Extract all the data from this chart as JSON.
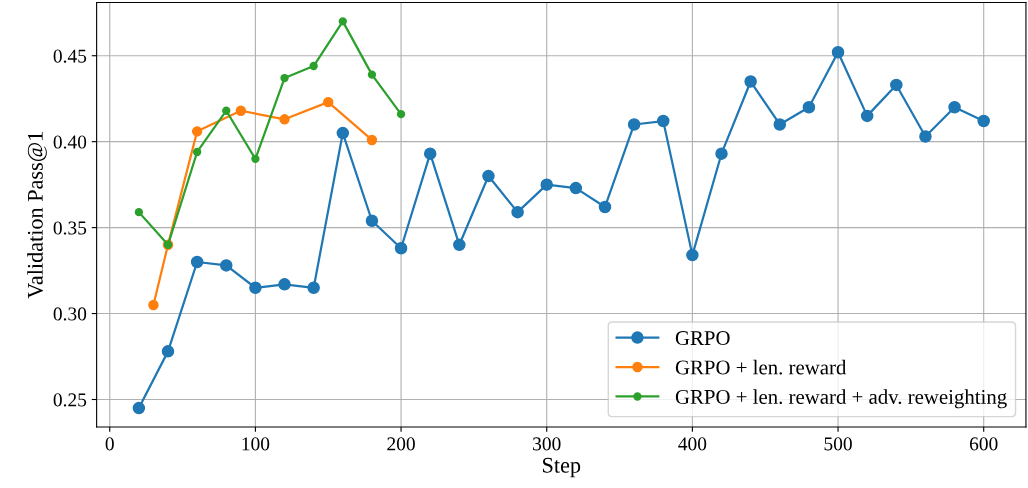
{
  "chart_data": {
    "type": "line",
    "xlabel": "Step",
    "ylabel": "Validation Pass@1",
    "xlim": [
      -9,
      629
    ],
    "xticks": [
      0,
      100,
      200,
      300,
      400,
      500,
      600
    ],
    "ylim": [
      0.234,
      0.481
    ],
    "yticks": [
      {
        "value": 0.25,
        "label": "0.25"
      },
      {
        "value": 0.3,
        "label": "0.30"
      },
      {
        "value": 0.35,
        "label": "0.35"
      },
      {
        "value": 0.4,
        "label": "0.40"
      },
      {
        "value": 0.45,
        "label": "0.45"
      }
    ],
    "grid": true,
    "legend": "bottom right",
    "marker": "circle",
    "line_style": "solid",
    "series": [
      {
        "name": "GRPO",
        "color": "#1f77b4",
        "x": [
          20,
          40,
          60,
          80,
          100,
          120,
          140,
          160,
          180,
          200,
          220,
          240,
          260,
          280,
          300,
          320,
          340,
          360,
          380,
          400,
          420,
          440,
          460,
          480,
          500,
          520,
          540,
          560,
          580,
          600
        ],
        "values": [
          0.245,
          0.278,
          0.33,
          0.328,
          0.315,
          0.317,
          0.315,
          0.405,
          0.354,
          0.338,
          0.393,
          0.34,
          0.38,
          0.359,
          0.375,
          0.373,
          0.362,
          0.41,
          0.412,
          0.334,
          0.393,
          0.435,
          0.41,
          0.42,
          0.452,
          0.415,
          0.433,
          0.403,
          0.42,
          0.412
        ]
      },
      {
        "name": "GRPO + len. reward",
        "color": "#ff7f0e",
        "x": [
          30,
          40,
          60,
          90,
          120,
          150,
          180
        ],
        "values": [
          0.305,
          0.34,
          0.406,
          0.418,
          0.413,
          0.423,
          0.401
        ]
      },
      {
        "name": "GRPO + len. reward + adv. reweighting",
        "color": "#2ca02c",
        "x": [
          20,
          40,
          60,
          80,
          100,
          120,
          140,
          160,
          180,
          200
        ],
        "values": [
          0.359,
          0.34,
          0.394,
          0.418,
          0.39,
          0.437,
          0.444,
          0.47,
          0.439,
          0.416
        ]
      }
    ]
  }
}
